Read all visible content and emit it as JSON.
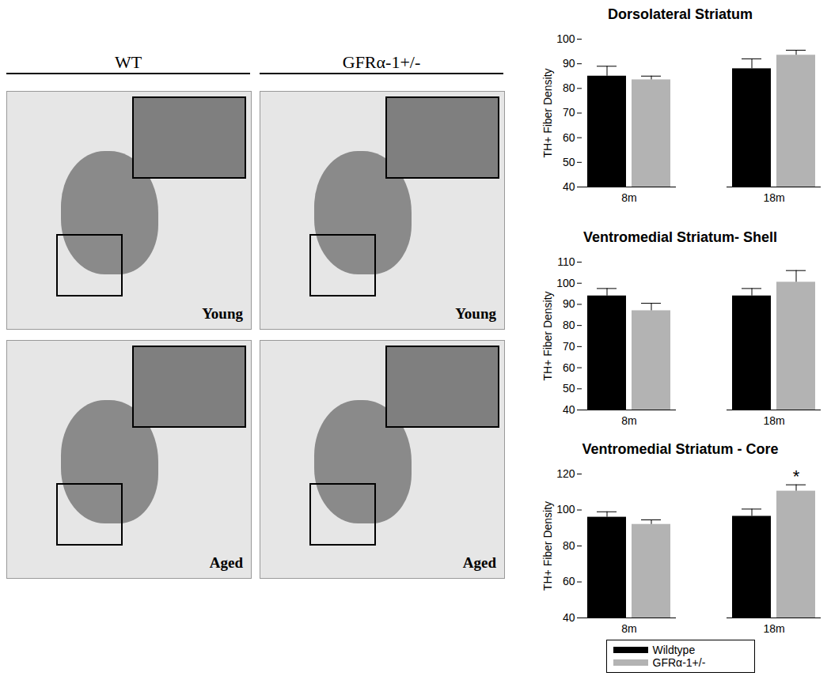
{
  "image_panel": {
    "columns": [
      "WT",
      "GFRα-1+/-"
    ],
    "rows": [
      "Young",
      "Aged"
    ]
  },
  "chart_data": [
    {
      "type": "bar",
      "title": "Dorsolateral Striatum",
      "y_label": "TH+ Fiber Density",
      "categories": [
        "8m",
        "18m"
      ],
      "series": [
        {
          "name": "Wildtype",
          "color": "#000000",
          "values": [
            85,
            88
          ],
          "errors": [
            4,
            4
          ]
        },
        {
          "name": "GFRα-1+/-",
          "color": "#b3b3b3",
          "values": [
            83.5,
            93.5
          ],
          "errors": [
            1.5,
            2
          ]
        }
      ],
      "ylim": [
        40,
        100
      ],
      "yticks": [
        40,
        50,
        60,
        70,
        80,
        90,
        100
      ]
    },
    {
      "type": "bar",
      "title": "Ventromedial Striatum- Shell",
      "y_label": "TH+ Fiber Density",
      "categories": [
        "8m",
        "18m"
      ],
      "series": [
        {
          "name": "Wildtype",
          "color": "#000000",
          "values": [
            94,
            94
          ],
          "errors": [
            3.5,
            3.5
          ]
        },
        {
          "name": "GFRα-1+/-",
          "color": "#b3b3b3",
          "values": [
            87,
            100.5
          ],
          "errors": [
            3.5,
            5.5
          ]
        }
      ],
      "ylim": [
        40,
        110
      ],
      "yticks": [
        40,
        50,
        60,
        70,
        80,
        90,
        100,
        110
      ]
    },
    {
      "type": "bar",
      "title": "Ventromedial Striatum - Core",
      "y_label": "TH+ Fiber Density",
      "categories": [
        "8m",
        "18m"
      ],
      "series": [
        {
          "name": "Wildtype",
          "color": "#000000",
          "values": [
            96,
            96.5
          ],
          "errors": [
            3,
            4
          ]
        },
        {
          "name": "GFRα-1+/-",
          "color": "#b3b3b3",
          "values": [
            92,
            110.5
          ],
          "errors": [
            2.5,
            3.5
          ]
        }
      ],
      "ylim": [
        40,
        120
      ],
      "yticks": [
        40,
        60,
        80,
        100,
        120
      ],
      "annotations": [
        {
          "text": "*",
          "category": "18m",
          "series": "GFRα-1+/-"
        }
      ],
      "legend": "bottom"
    }
  ]
}
